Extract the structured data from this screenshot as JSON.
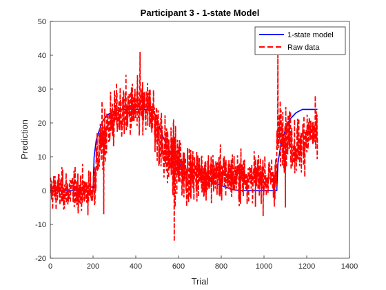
{
  "chart_data": {
    "type": "line",
    "title": "Participant 3 - 1-state Model",
    "xlabel": "Trial",
    "ylabel": "Prediction",
    "xlim": [
      0,
      1400
    ],
    "ylim": [
      -20,
      50
    ],
    "xticks": [
      0,
      200,
      400,
      600,
      800,
      1000,
      1200,
      1400
    ],
    "yticks": [
      -20,
      -10,
      0,
      10,
      20,
      30,
      40,
      50
    ],
    "grid": false,
    "legend_position": "top-right",
    "series": [
      {
        "name": "1-state model",
        "color": "#0000ff",
        "style": "solid",
        "points": [
          [
            1,
            0
          ],
          [
            200,
            0
          ],
          [
            205,
            10
          ],
          [
            215,
            15
          ],
          [
            230,
            18
          ],
          [
            250,
            21
          ],
          [
            270,
            22.5
          ],
          [
            300,
            23.5
          ],
          [
            340,
            24
          ],
          [
            480,
            24
          ],
          [
            500,
            21
          ],
          [
            520,
            17
          ],
          [
            540,
            14
          ],
          [
            560,
            11.5
          ],
          [
            580,
            9.5
          ],
          [
            600,
            8
          ],
          [
            630,
            6.5
          ],
          [
            660,
            5.5
          ],
          [
            700,
            4.5
          ],
          [
            740,
            3
          ],
          [
            780,
            2
          ],
          [
            820,
            1
          ],
          [
            860,
            0.2
          ],
          [
            900,
            0
          ],
          [
            1060,
            0
          ],
          [
            1065,
            8
          ],
          [
            1080,
            14
          ],
          [
            1100,
            18
          ],
          [
            1120,
            21
          ],
          [
            1150,
            23
          ],
          [
            1180,
            24
          ],
          [
            1250,
            24
          ]
        ]
      },
      {
        "name": "Raw data",
        "color": "#ff0000",
        "style": "dashed",
        "generated_profile": {
          "n_trials": 1250,
          "segments": [
            {
              "from": 1,
              "to": 200,
              "mean": 0,
              "noise": 4
            },
            {
              "from": 200,
              "to": 480,
              "mean_path": "rise to 24",
              "noise": 6
            },
            {
              "from": 480,
              "to": 650,
              "mean_path": "decay to 5",
              "noise": 7
            },
            {
              "from": 650,
              "to": 1060,
              "mean": 5,
              "noise": 5
            },
            {
              "from": 1060,
              "to": 1250,
              "mean": 15,
              "noise": 6
            }
          ],
          "notable_values": [
            {
              "trial": 420,
              "y": 41
            },
            {
              "trial": 1065,
              "y": 40
            },
            {
              "trial": 580,
              "y": -15
            },
            {
              "trial": 1100,
              "y": -5
            },
            {
              "trial": 250,
              "y": -7
            }
          ]
        }
      }
    ]
  }
}
